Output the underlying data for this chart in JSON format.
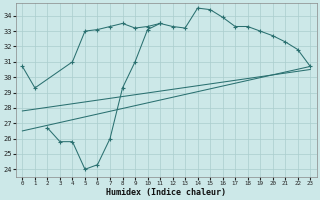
{
  "bg_color": "#cce8e8",
  "grid_color": "#aacece",
  "line_color": "#2a7070",
  "xlabel": "Humidex (Indice chaleur)",
  "xlim": [
    -0.5,
    23.5
  ],
  "ylim": [
    23.5,
    34.8
  ],
  "yticks": [
    24,
    25,
    26,
    27,
    28,
    29,
    30,
    31,
    32,
    33,
    34
  ],
  "xticks": [
    0,
    1,
    2,
    3,
    4,
    5,
    6,
    7,
    8,
    9,
    10,
    11,
    12,
    13,
    14,
    15,
    16,
    17,
    18,
    19,
    20,
    21,
    22,
    23
  ],
  "line1_x": [
    0,
    1,
    4,
    5,
    6,
    7,
    8,
    9,
    10,
    11,
    12,
    13,
    14,
    15,
    16,
    17,
    18,
    19,
    20,
    21,
    22,
    23
  ],
  "line1_y": [
    30.7,
    29.3,
    31.0,
    33.0,
    33.1,
    33.3,
    33.5,
    33.2,
    33.3,
    33.5,
    33.3,
    33.2,
    34.5,
    34.4,
    33.9,
    33.3,
    33.3,
    33.0,
    32.7,
    32.3,
    31.8,
    30.7
  ],
  "line2_x": [
    2,
    3,
    4,
    5,
    6,
    7,
    8,
    9,
    10,
    11
  ],
  "line2_y": [
    26.7,
    25.8,
    25.8,
    24.0,
    24.3,
    26.0,
    29.3,
    31.0,
    33.1,
    33.5
  ],
  "line3_x": [
    0,
    23
  ],
  "line3_y": [
    27.8,
    30.5
  ],
  "line4_x": [
    0,
    23
  ],
  "line4_y": [
    26.5,
    30.7
  ]
}
